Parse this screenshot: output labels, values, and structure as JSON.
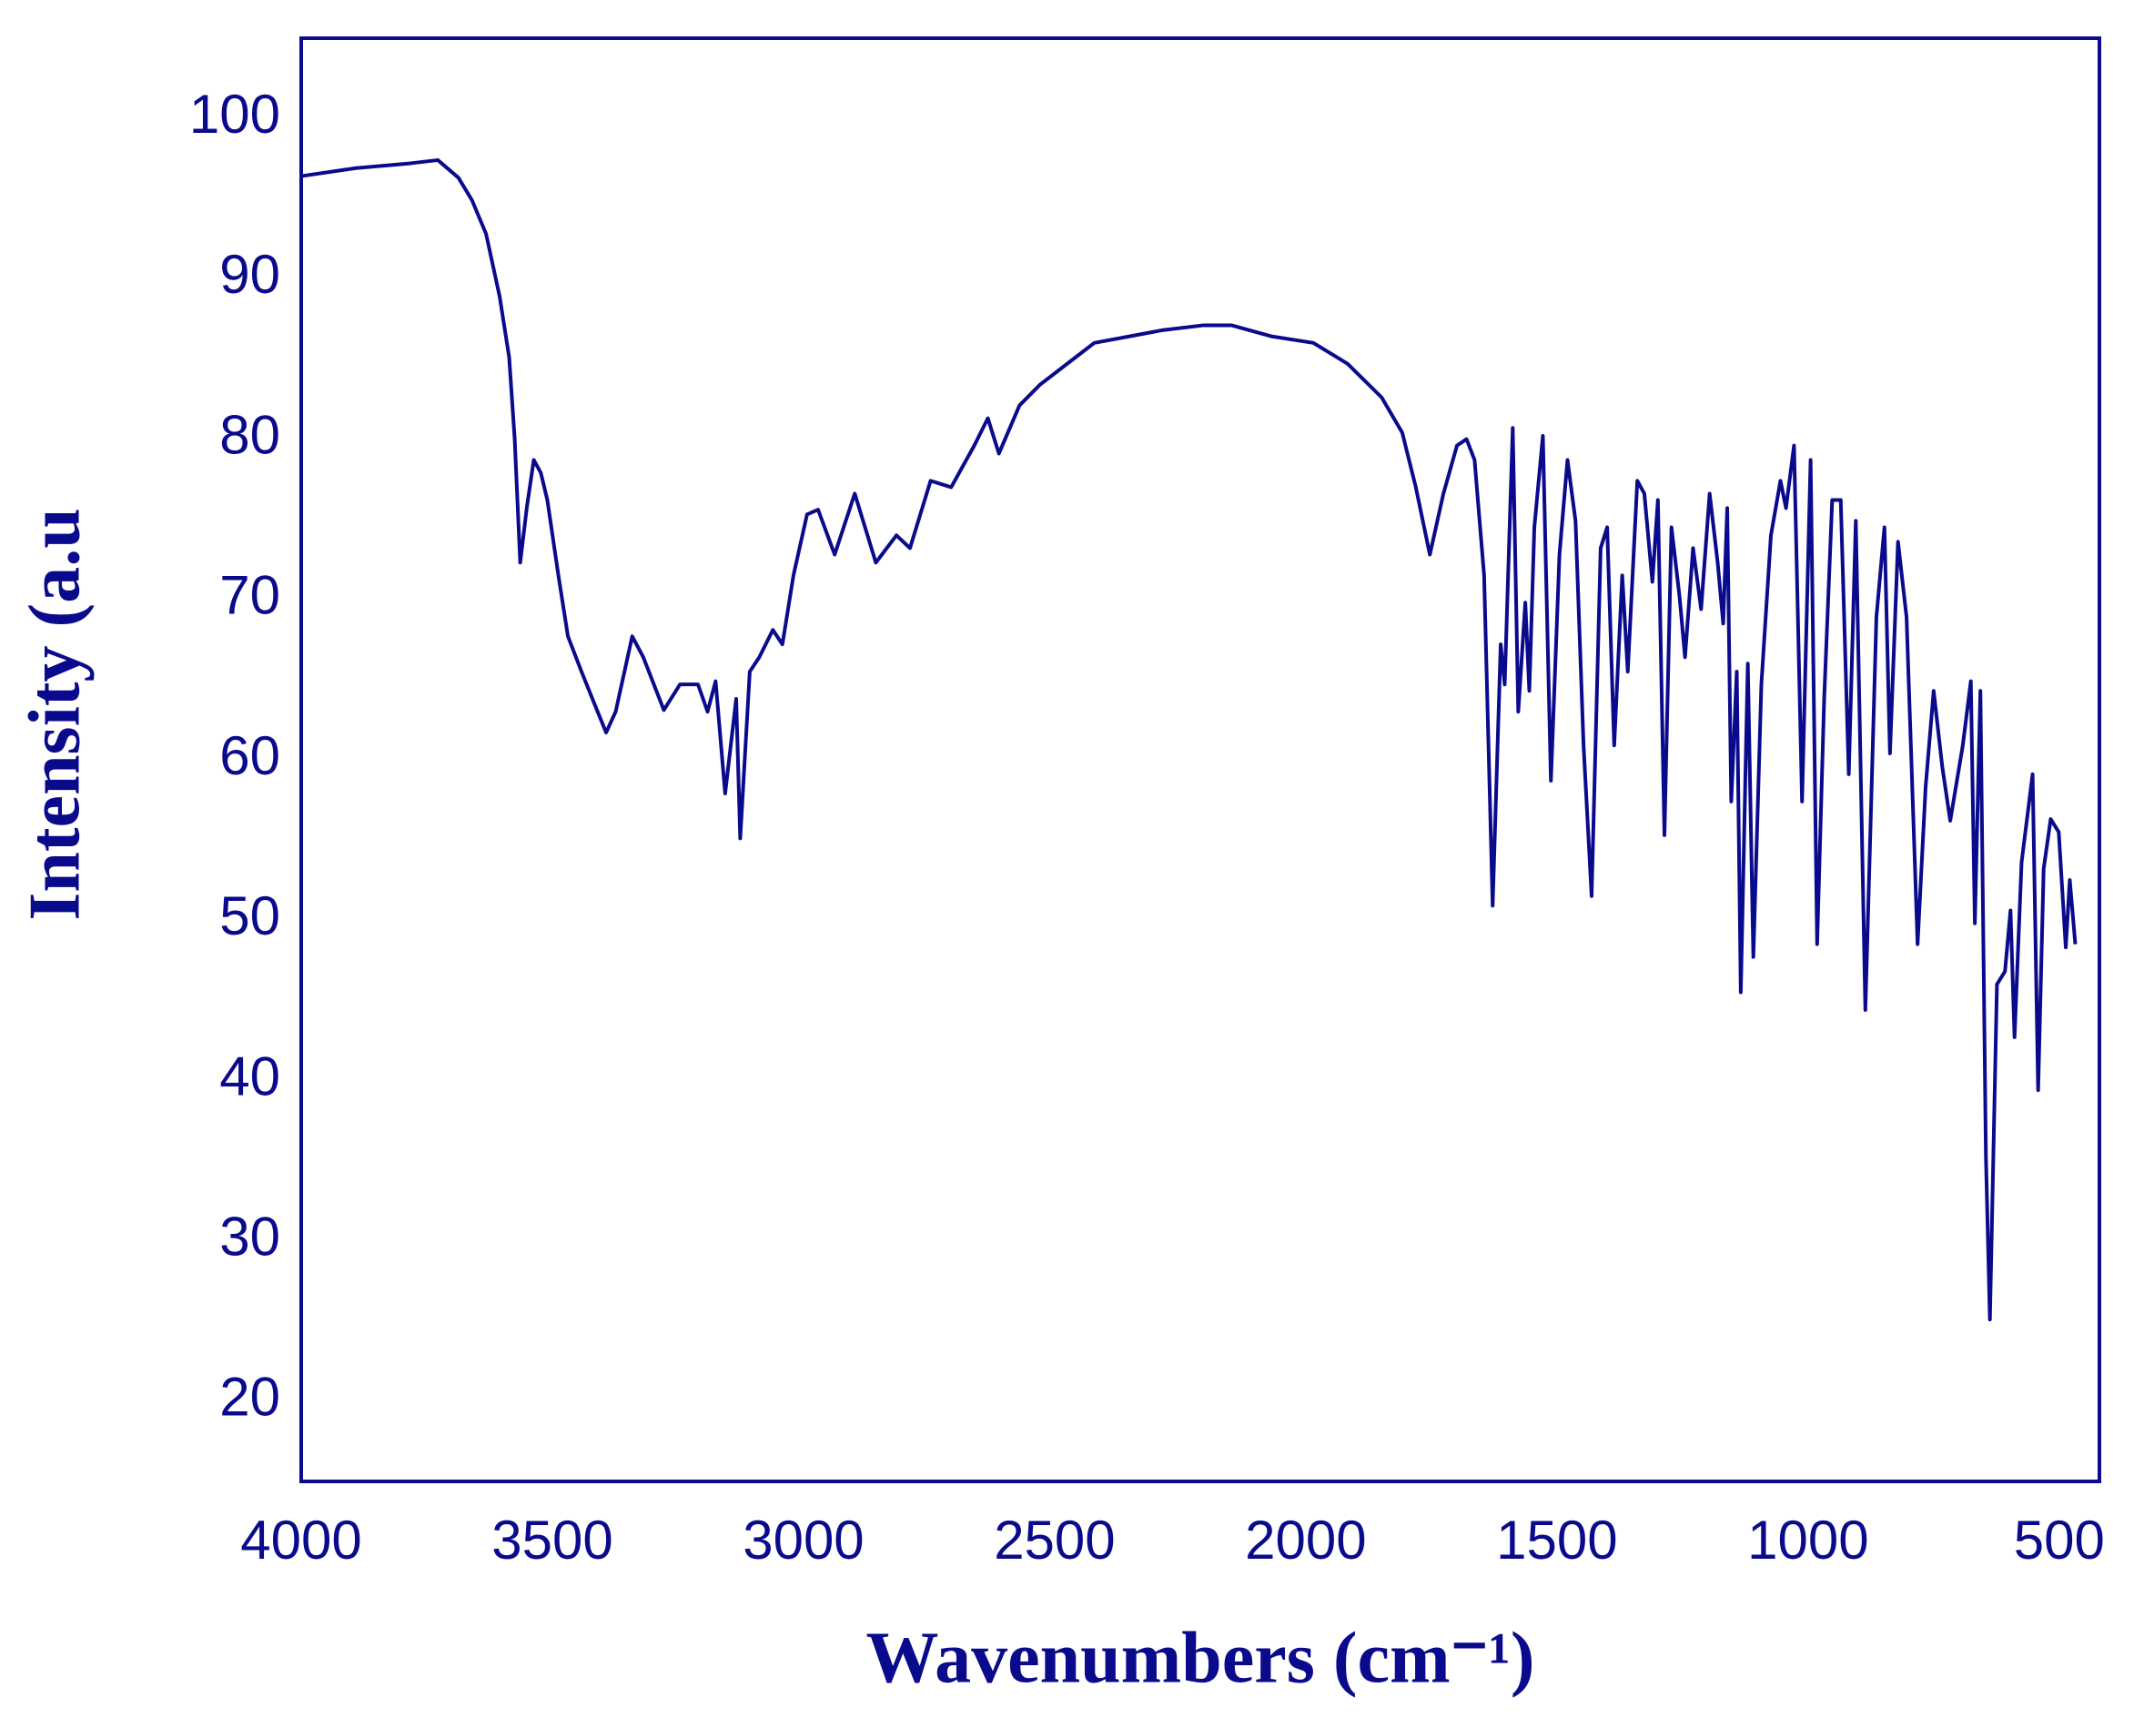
{
  "chart_data": {
    "type": "line",
    "xlabel": "Wavenumbers (cm⁻¹)",
    "ylabel": "Intensity (a.u",
    "color": "#0a0a8c",
    "xlim": [
      4000,
      420
    ],
    "xticks": [
      4000,
      3500,
      3000,
      2500,
      2000,
      1500,
      1000,
      500
    ],
    "ylim": [
      15,
      105
    ],
    "yticks": [
      20,
      30,
      40,
      50,
      60,
      70,
      80,
      90,
      100
    ],
    "x": [
      4000,
      3891,
      3782,
      3728,
      3687,
      3660,
      3632,
      3605,
      3586,
      3575,
      3564,
      3551,
      3537,
      3523,
      3510,
      3488,
      3469,
      3442,
      3415,
      3393,
      3374,
      3341,
      3319,
      3278,
      3246,
      3210,
      3191,
      3175,
      3156,
      3134,
      3126,
      3107,
      3088,
      3061,
      3042,
      3020,
      2993,
      2971,
      2938,
      2898,
      2856,
      2815,
      2788,
      2747,
      2706,
      2660,
      2633,
      2611,
      2570,
      2529,
      2475,
      2421,
      2352,
      2284,
      2203,
      2148,
      2067,
      1985,
      1917,
      1849,
      1808,
      1781,
      1753,
      1726,
      1699,
      1680,
      1664,
      1645,
      1628,
      1612,
      1604,
      1588,
      1577,
      1563,
      1555,
      1545,
      1528,
      1512,
      1495,
      1479,
      1463,
      1447,
      1431,
      1413,
      1400,
      1386,
      1370,
      1359,
      1340,
      1326,
      1310,
      1299,
      1286,
      1272,
      1256,
      1245,
      1229,
      1213,
      1196,
      1180,
      1169,
      1161,
      1153,
      1142,
      1134,
      1120,
      1109,
      1093,
      1074,
      1055,
      1044,
      1028,
      1012,
      995,
      982,
      968,
      952,
      935,
      919,
      905,
      886,
      864,
      848,
      837,
      821,
      804,
      782,
      766,
      750,
      733,
      717,
      692,
      676,
      668,
      657,
      646,
      638,
      624,
      608,
      597,
      589,
      575,
      553,
      542,
      531,
      517,
      501,
      487,
      479,
      468
    ],
    "values": [
      96.4,
      96.9,
      97.2,
      97.4,
      96.3,
      94.9,
      92.8,
      88.9,
      85.1,
      80.0,
      72.3,
      75.7,
      78.7,
      77.9,
      76.2,
      71.5,
      67.7,
      65.5,
      63.4,
      61.7,
      63.0,
      67.7,
      66.4,
      63.1,
      64.7,
      64.7,
      63.0,
      64.9,
      57.9,
      63.8,
      55.1,
      65.5,
      66.4,
      68.1,
      67.2,
      71.5,
      75.3,
      75.6,
      72.8,
      76.6,
      72.3,
      74.0,
      73.2,
      77.4,
      77.0,
      79.6,
      81.3,
      79.1,
      82.1,
      83.4,
      84.7,
      86.0,
      86.4,
      86.8,
      87.1,
      87.1,
      86.4,
      86.0,
      84.7,
      82.6,
      80.4,
      77.0,
      72.8,
      76.6,
      79.6,
      80.0,
      78.7,
      71.5,
      50.9,
      67.2,
      64.7,
      80.7,
      63.0,
      69.8,
      64.3,
      74.5,
      80.2,
      58.7,
      72.8,
      78.7,
      74.9,
      60.9,
      51.5,
      73.2,
      74.5,
      60.9,
      71.5,
      65.5,
      77.4,
      76.6,
      71.1,
      76.2,
      55.3,
      74.5,
      70.2,
      66.4,
      73.2,
      69.4,
      76.6,
      72.3,
      68.5,
      75.7,
      57.4,
      65.5,
      45.5,
      66.0,
      47.7,
      64.7,
      74.0,
      77.4,
      75.7,
      79.6,
      57.4,
      78.7,
      48.5,
      63.8,
      76.2,
      76.2,
      59.1,
      74.9,
      44.4,
      68.9,
      74.5,
      60.4,
      73.6,
      68.9,
      48.5,
      58.3,
      64.3,
      59.6,
      56.2,
      60.9,
      64.9,
      49.8,
      64.3,
      35.3,
      25.1,
      46.0,
      46.8,
      50.6,
      42.7,
      53.6,
      59.1,
      39.4,
      53.2,
      56.3,
      55.5,
      48.3,
      52.5,
      48.5
    ]
  }
}
